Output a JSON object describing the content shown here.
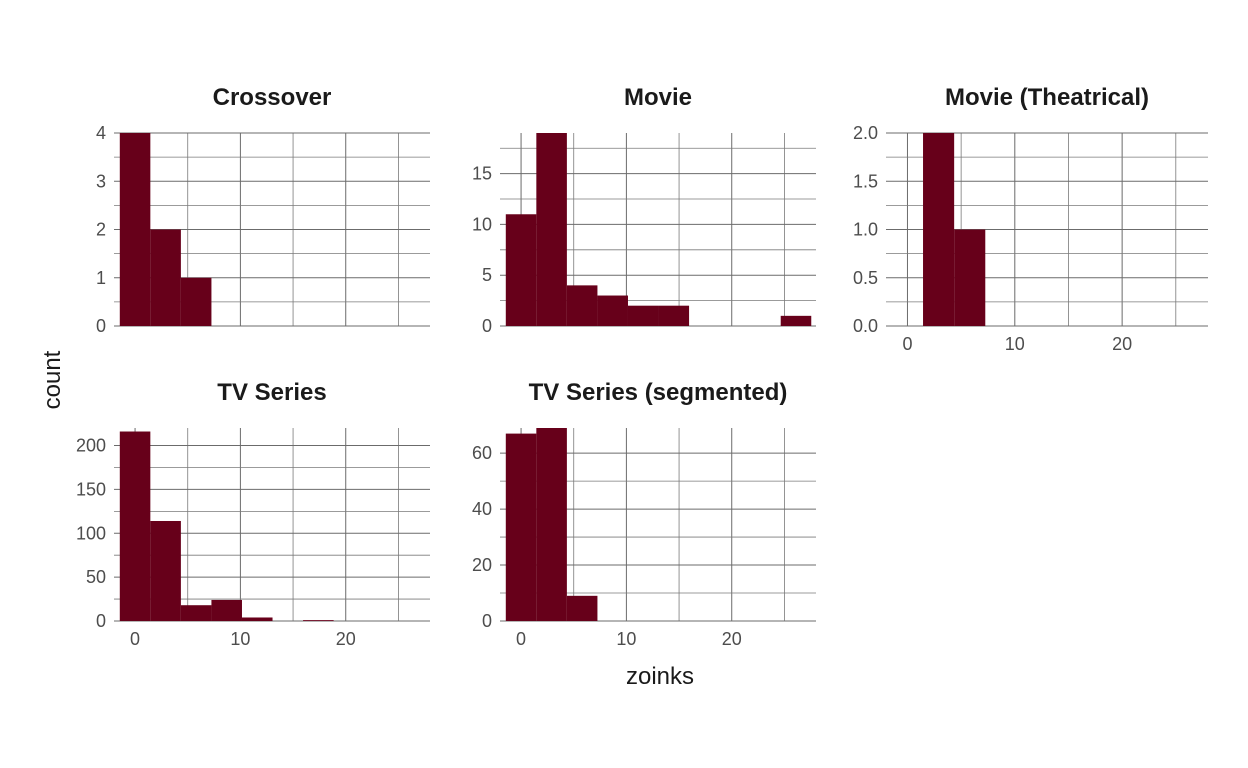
{
  "chart_data": {
    "type": "bar",
    "subtype": "faceted-histogram",
    "xlabel": "zoinks",
    "ylabel": "count",
    "x_shared_range": [
      -2,
      28
    ],
    "x_ticks": [
      0,
      10,
      20
    ],
    "bar_color": "#67001a",
    "bin_width": 2.9,
    "grid": "on",
    "facets": [
      {
        "title": "Crossover",
        "ylim": [
          0,
          4
        ],
        "y_ticks": [
          0,
          1,
          2,
          3,
          4
        ],
        "y_tick_labels": [
          "0",
          "1",
          "2",
          "3",
          "4"
        ],
        "show_x_labels": false,
        "bins": [
          {
            "x0": -1.45,
            "x1": 1.45,
            "count": 4
          },
          {
            "x0": 1.45,
            "x1": 4.35,
            "count": 2
          },
          {
            "x0": 4.35,
            "x1": 7.25,
            "count": 1
          }
        ]
      },
      {
        "title": "Movie",
        "ylim": [
          0,
          19
        ],
        "y_ticks": [
          0,
          5,
          10,
          15
        ],
        "y_tick_labels": [
          "0",
          "5",
          "10",
          "15"
        ],
        "show_x_labels": false,
        "bins": [
          {
            "x0": -1.45,
            "x1": 1.45,
            "count": 11
          },
          {
            "x0": 1.45,
            "x1": 4.35,
            "count": 19
          },
          {
            "x0": 4.35,
            "x1": 7.25,
            "count": 4
          },
          {
            "x0": 7.25,
            "x1": 10.15,
            "count": 3
          },
          {
            "x0": 10.15,
            "x1": 13.05,
            "count": 2
          },
          {
            "x0": 13.05,
            "x1": 15.95,
            "count": 2
          },
          {
            "x0": 24.65,
            "x1": 27.55,
            "count": 1
          }
        ]
      },
      {
        "title": "Movie (Theatrical)",
        "ylim": [
          0,
          2
        ],
        "y_ticks": [
          0,
          0.5,
          1,
          1.5,
          2
        ],
        "y_tick_labels": [
          "0.0",
          "0.5",
          "1.0",
          "1.5",
          "2.0"
        ],
        "show_x_labels": true,
        "bins": [
          {
            "x0": 1.45,
            "x1": 4.35,
            "count": 2
          },
          {
            "x0": 4.35,
            "x1": 7.25,
            "count": 1
          }
        ]
      },
      {
        "title": "TV Series",
        "ylim": [
          0,
          220
        ],
        "y_ticks": [
          0,
          50,
          100,
          150,
          200
        ],
        "y_tick_labels": [
          "0",
          "50",
          "100",
          "150",
          "200"
        ],
        "show_x_labels": true,
        "bins": [
          {
            "x0": -1.45,
            "x1": 1.45,
            "count": 216
          },
          {
            "x0": 1.45,
            "x1": 4.35,
            "count": 114
          },
          {
            "x0": 4.35,
            "x1": 7.25,
            "count": 18
          },
          {
            "x0": 7.25,
            "x1": 10.15,
            "count": 24
          },
          {
            "x0": 10.15,
            "x1": 13.05,
            "count": 4
          },
          {
            "x0": 15.95,
            "x1": 18.85,
            "count": 1
          }
        ]
      },
      {
        "title": "TV Series (segmented)",
        "ylim": [
          0,
          69
        ],
        "y_ticks": [
          0,
          20,
          40,
          60
        ],
        "y_tick_labels": [
          "0",
          "20",
          "40",
          "60"
        ],
        "show_x_labels": true,
        "bins": [
          {
            "x0": -1.45,
            "x1": 1.45,
            "count": 67
          },
          {
            "x0": 1.45,
            "x1": 4.35,
            "count": 69
          },
          {
            "x0": 4.35,
            "x1": 7.25,
            "count": 9
          }
        ]
      }
    ]
  }
}
